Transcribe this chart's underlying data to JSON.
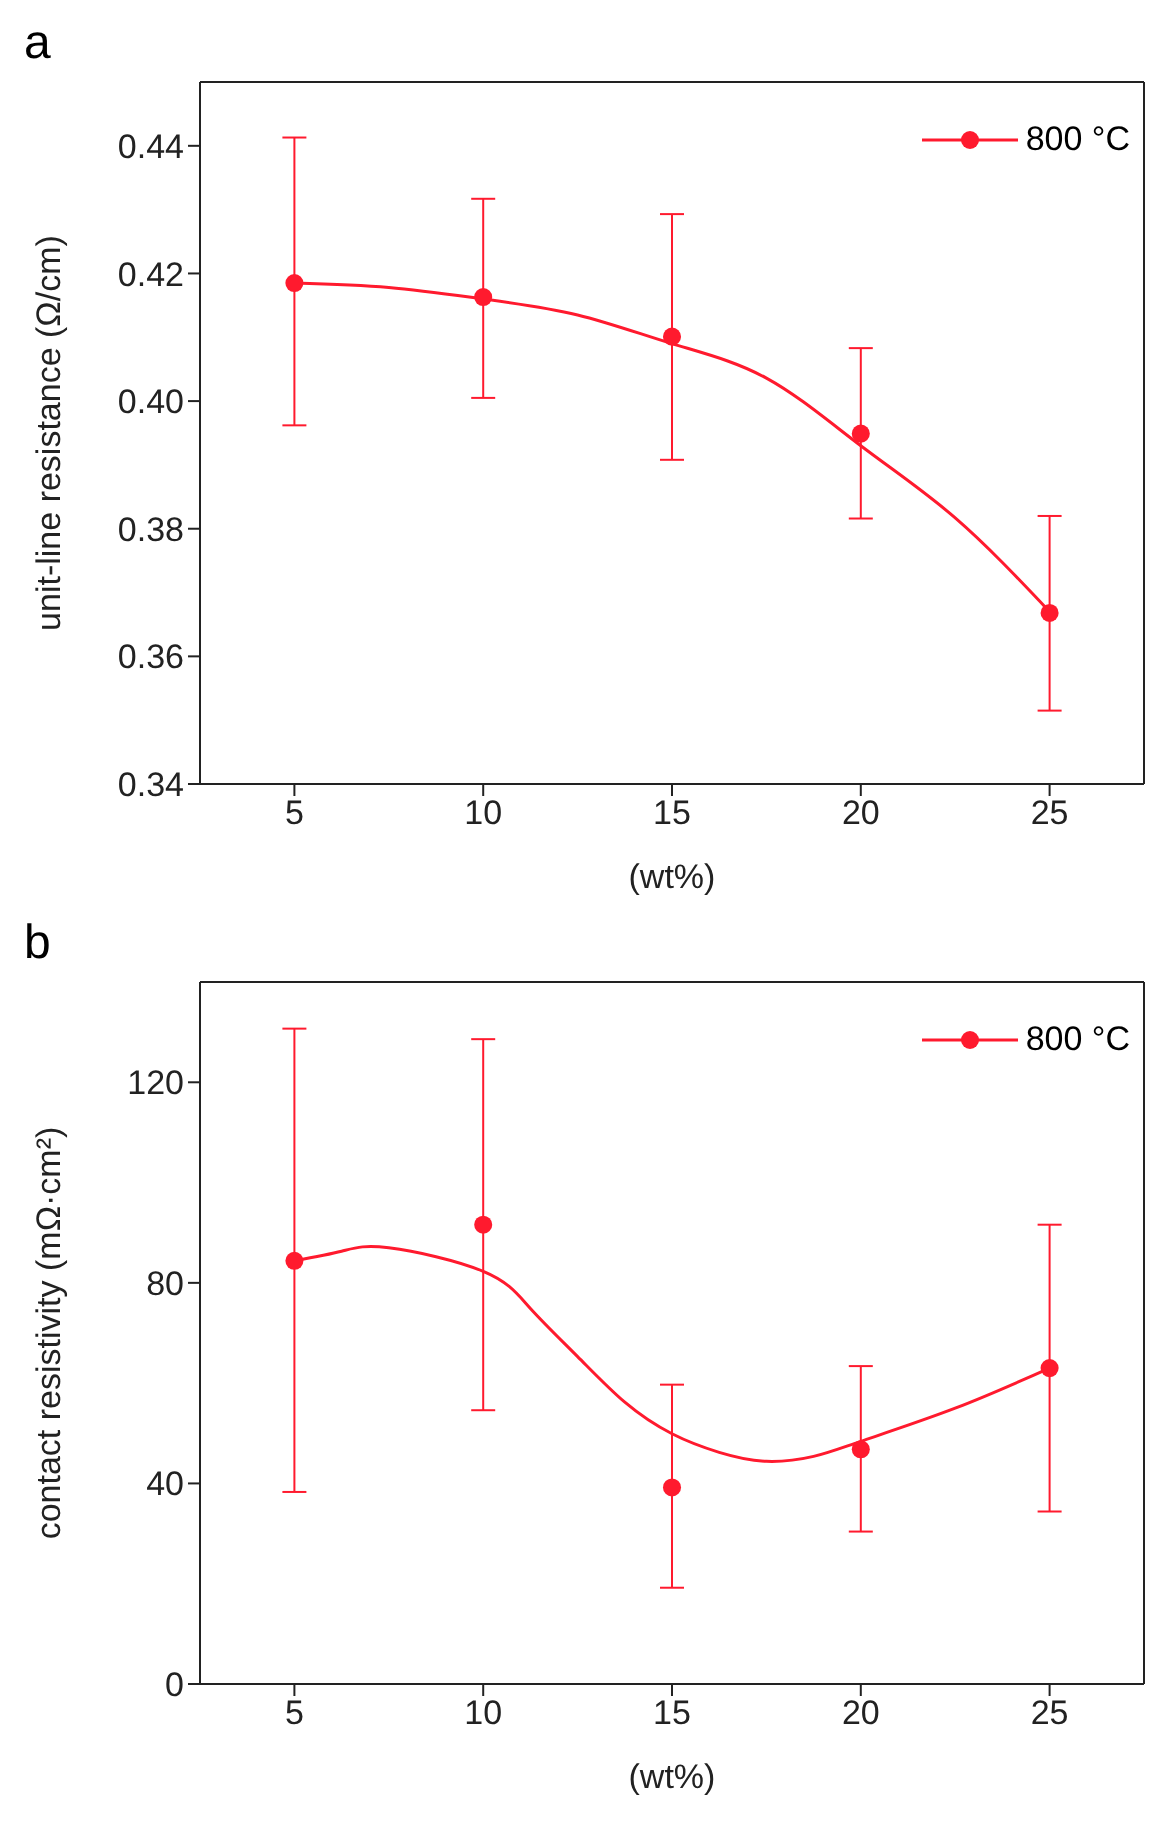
{
  "chart_data": [
    {
      "type": "scatter",
      "title": "a",
      "xlabel": "(wt%)",
      "ylabel": "unit-line resistance (Ω/cm)",
      "xlim": [
        2.5,
        27.5
      ],
      "xticks": [
        5,
        10,
        15,
        20,
        25
      ],
      "ylim": [
        0.34,
        0.45
      ],
      "yticks": [
        0.34,
        0.36,
        0.38,
        {
          "value": 0.4,
          "label": "0.40"
        },
        0.42,
        0.44
      ],
      "grid": false,
      "legend": "top right",
      "series": [
        {
          "name": "800 °C",
          "color": "#ff1a2e",
          "marker": "circle",
          "x": [
            5,
            10,
            15,
            20,
            25
          ],
          "values": [
            0.4185,
            0.4163,
            0.4101,
            0.3949,
            0.3668
          ],
          "errors": [
            [
              0.3962,
              0.4413
            ],
            [
              0.4005,
              0.4317
            ],
            [
              0.3908,
              0.4293
            ],
            [
              0.3816,
              0.4083
            ],
            [
              0.3515,
              0.382
            ]
          ]
        },
        {
          "type": "line",
          "color": "#ff1a2e",
          "marker": "none",
          "line_style": "solid",
          "x": [
            5,
            7.5,
            10,
            12.5,
            15,
            17.5,
            20,
            22.5,
            25
          ],
          "values": [
            0.4185,
            0.4178,
            0.416,
            0.4135,
            0.409,
            0.4036,
            0.393,
            0.3817,
            0.367
          ]
        }
      ]
    },
    {
      "type": "scatter",
      "title": "b",
      "xlabel": "(wt%)",
      "ylabel": "contact resistivity (mΩ·cm²)",
      "xlim": [
        2.5,
        27.5
      ],
      "xticks": [
        5,
        10,
        15,
        20,
        25
      ],
      "ylim": [
        0,
        140
      ],
      "yticks": [
        0,
        40,
        80,
        120
      ],
      "grid": false,
      "legend": "top right",
      "series": [
        {
          "name": "800 °C",
          "color": "#ff1a2e",
          "marker": "circle",
          "x": [
            5,
            10,
            15,
            20,
            25
          ],
          "values": [
            84.4,
            91.6,
            39.2,
            46.8,
            63.0
          ],
          "errors": [
            [
              38.3,
              130.7
            ],
            [
              54.6,
              128.6
            ],
            [
              19.2,
              59.7
            ],
            [
              30.4,
              63.4
            ],
            [
              34.4,
              91.6
            ]
          ]
        },
        {
          "type": "line",
          "color": "#ff1a2e",
          "marker": "none",
          "line_style": "solid",
          "x": [
            5,
            6.25,
            7.5,
            10,
            11.25,
            12.5,
            13.75,
            15,
            16.25,
            17.5,
            18.75,
            20,
            22.5,
            25
          ],
          "values": [
            84.4,
            86.3,
            87.0,
            82.3,
            74.9,
            65.3,
            56.2,
            49.9,
            46.2,
            44.4,
            45.4,
            48.4,
            55.0,
            63.0
          ]
        }
      ]
    }
  ]
}
